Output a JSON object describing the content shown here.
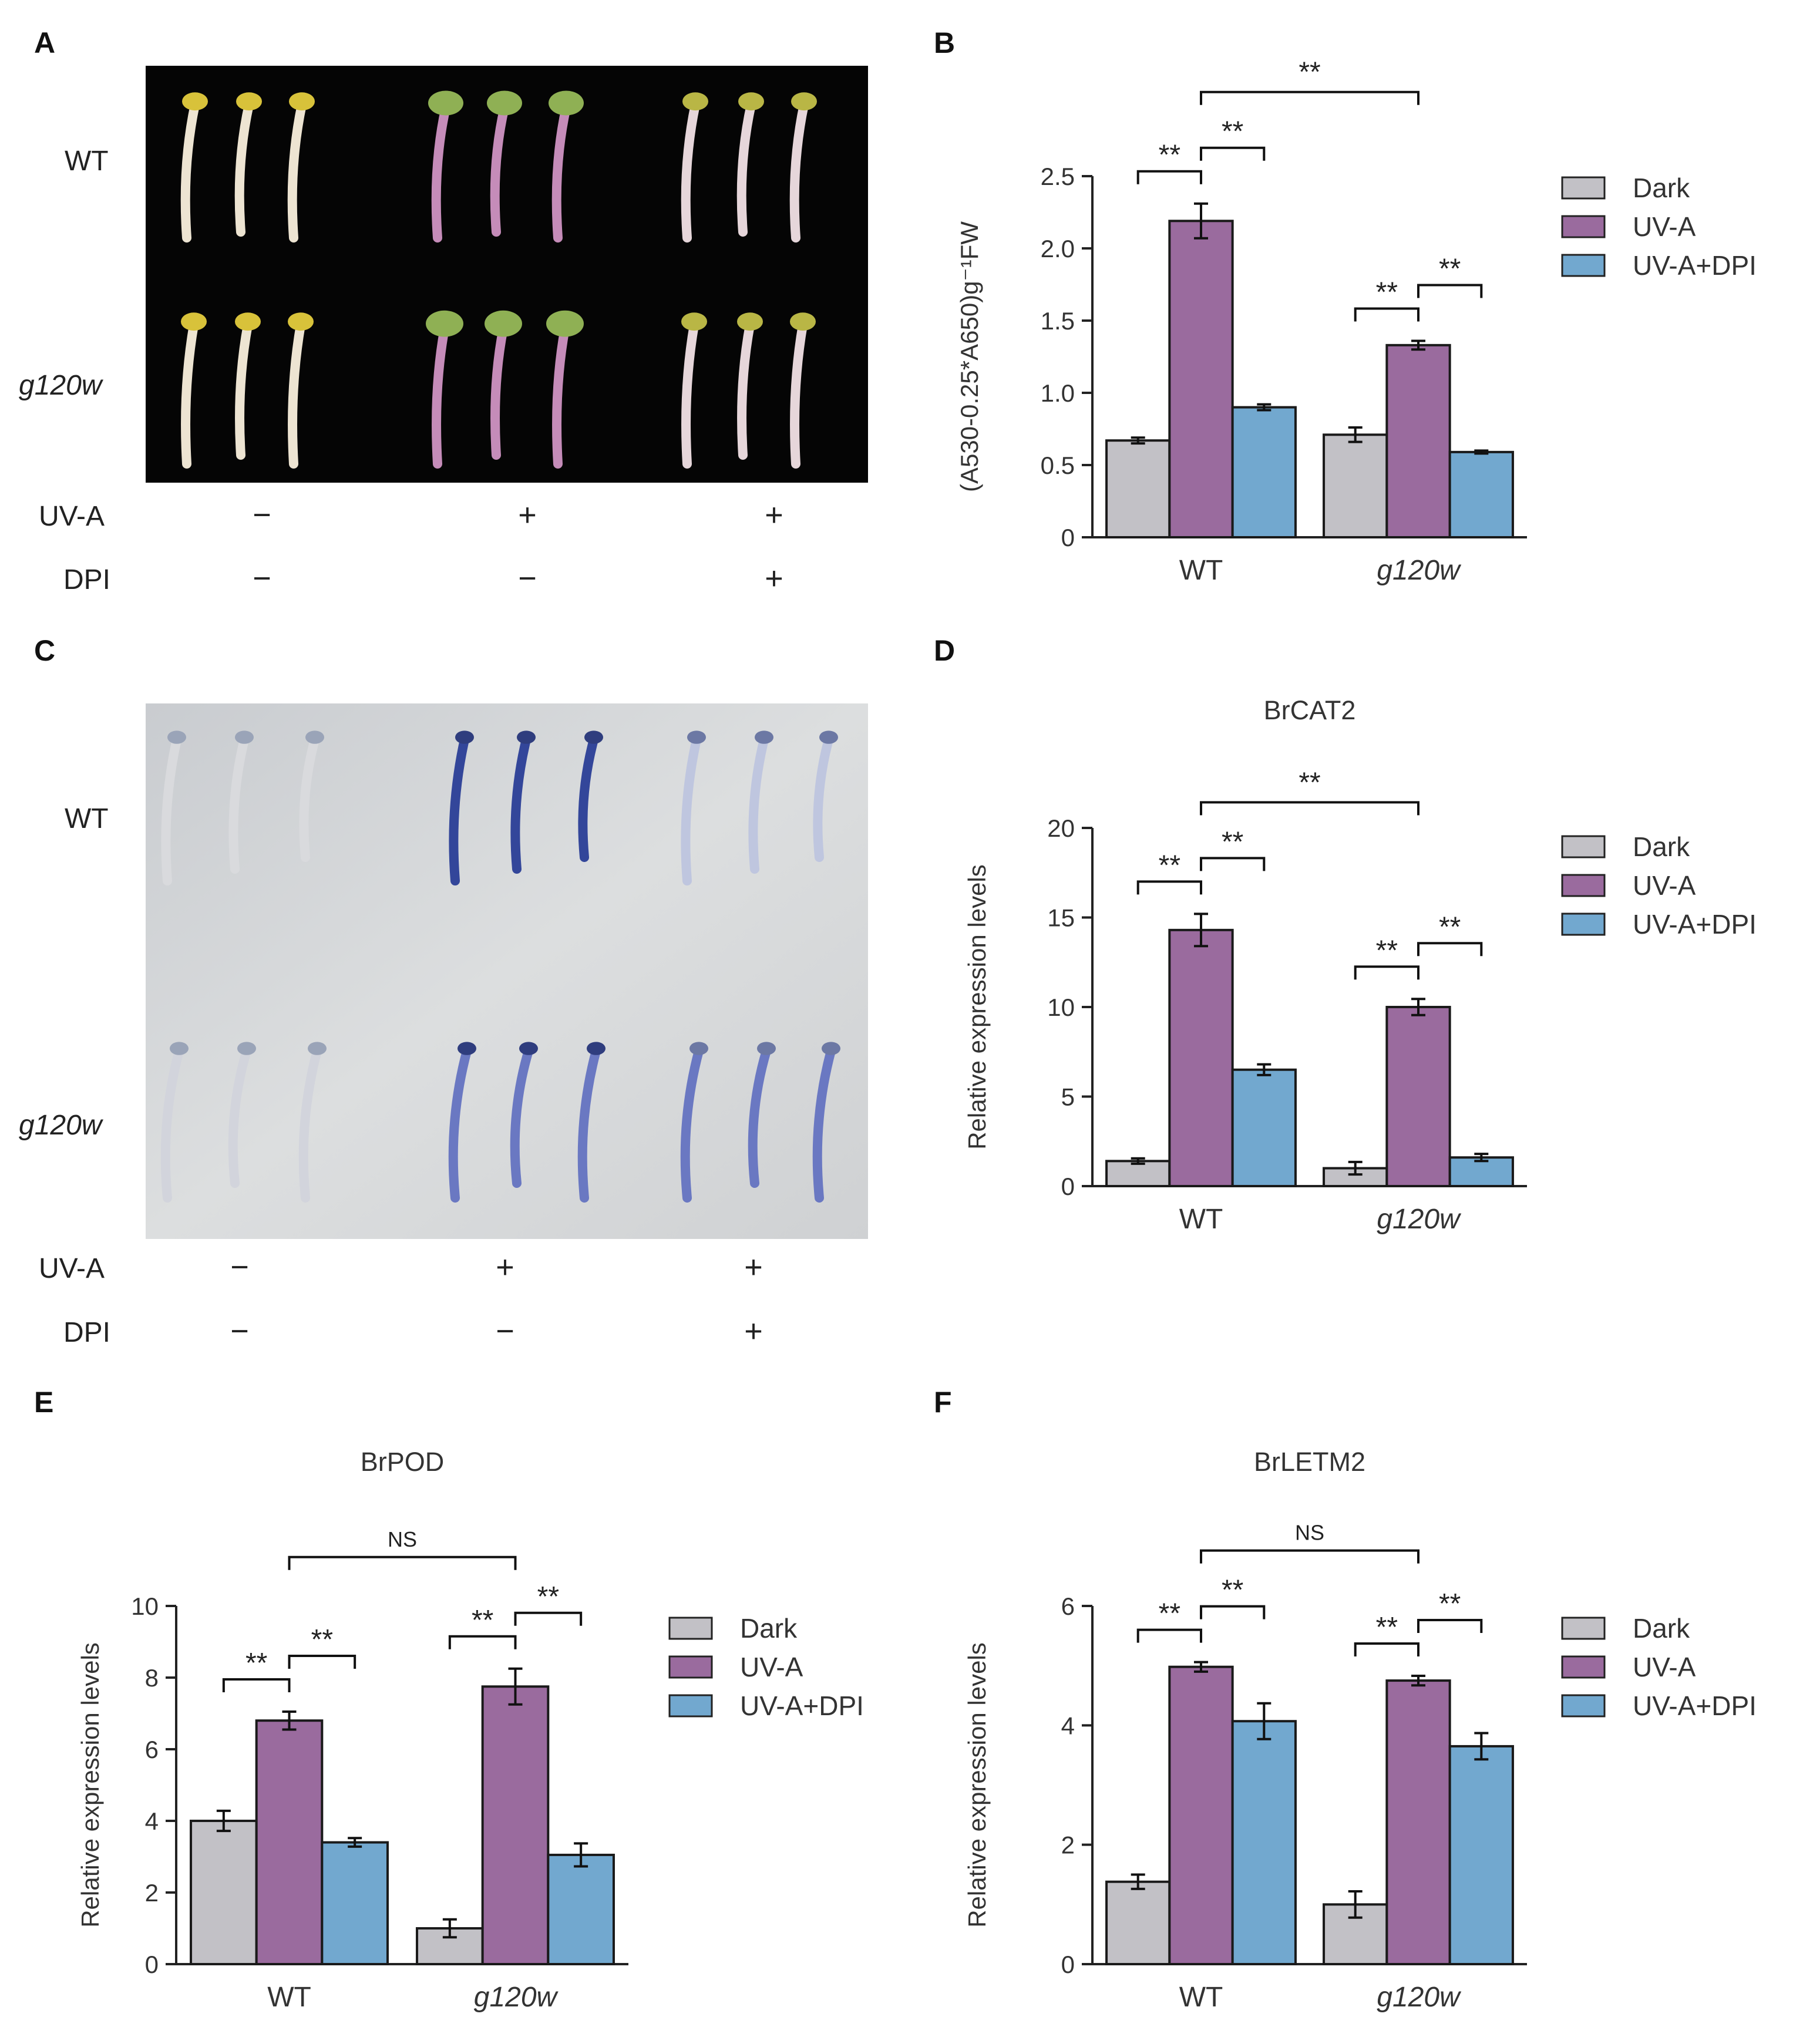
{
  "panel_labels": [
    "A",
    "B",
    "C",
    "D",
    "E",
    "F"
  ],
  "photo_panels": [
    {
      "id": "A",
      "row_labels": [
        "WT",
        "g120w"
      ],
      "treatments": [
        {
          "label": "UV-A",
          "marks": [
            "−",
            "+",
            "+"
          ]
        },
        {
          "label": "DPI",
          "marks": [
            "−",
            "−",
            "+"
          ]
        }
      ],
      "background": "#050505"
    },
    {
      "id": "C",
      "row_labels": [
        "WT",
        "g120w"
      ],
      "treatments": [
        {
          "label": "UV-A",
          "marks": [
            "−",
            "+",
            "+"
          ]
        },
        {
          "label": "DPI",
          "marks": [
            "−",
            "−",
            "+"
          ]
        }
      ],
      "background": "#d3d5d7"
    }
  ],
  "legend": {
    "items": [
      {
        "name": "Dark",
        "color": "#c2c1c6"
      },
      {
        "name": "UV-A",
        "color": "#9a6b9e"
      },
      {
        "name": "UV-A+DPI",
        "color": "#72a8cf"
      }
    ]
  },
  "chart_data": [
    {
      "panel": "B",
      "type": "bar",
      "title": "",
      "ylabel": "(A530-0.25*A650)g⁻¹FW",
      "categories": [
        "WT",
        "g120w"
      ],
      "category_italic": [
        false,
        true
      ],
      "ylim": [
        0,
        2.5
      ],
      "yticks": [
        "0",
        "0.5",
        "1.0",
        "1.5",
        "2.0",
        "2.5"
      ],
      "series": [
        {
          "name": "Dark",
          "values": [
            0.67,
            0.71
          ],
          "errors": [
            0.02,
            0.05
          ]
        },
        {
          "name": "UV-A",
          "values": [
            2.19,
            1.33
          ],
          "errors": [
            0.12,
            0.03
          ]
        },
        {
          "name": "UV-A+DPI",
          "values": [
            0.9,
            0.59
          ],
          "errors": [
            0.02,
            0.01
          ]
        }
      ],
      "significance": [
        {
          "group": 0,
          "from": 0,
          "to": 1,
          "label": "**"
        },
        {
          "group": 0,
          "from": 1,
          "to": 2,
          "label": "**"
        },
        {
          "group": 1,
          "from": 0,
          "to": 1,
          "label": "**"
        },
        {
          "group": 1,
          "from": 1,
          "to": 2,
          "label": "**"
        },
        {
          "cross": true,
          "label": "**"
        }
      ]
    },
    {
      "panel": "D",
      "type": "bar",
      "title": "BrCAT2",
      "ylabel": "Relative expression levels",
      "categories": [
        "WT",
        "g120w"
      ],
      "category_italic": [
        false,
        true
      ],
      "ylim": [
        0,
        20
      ],
      "yticks": [
        "0",
        "5",
        "10",
        "15",
        "20"
      ],
      "series": [
        {
          "name": "Dark",
          "values": [
            1.4,
            1.0
          ],
          "errors": [
            0.15,
            0.35
          ]
        },
        {
          "name": "UV-A",
          "values": [
            14.3,
            10.0
          ],
          "errors": [
            0.9,
            0.45
          ]
        },
        {
          "name": "UV-A+DPI",
          "values": [
            6.5,
            1.6
          ],
          "errors": [
            0.3,
            0.2
          ]
        }
      ],
      "significance": [
        {
          "group": 0,
          "from": 0,
          "to": 1,
          "label": "**"
        },
        {
          "group": 0,
          "from": 1,
          "to": 2,
          "label": "**"
        },
        {
          "group": 1,
          "from": 0,
          "to": 1,
          "label": "**"
        },
        {
          "group": 1,
          "from": 1,
          "to": 2,
          "label": "**"
        },
        {
          "cross": true,
          "label": "**"
        }
      ]
    },
    {
      "panel": "E",
      "type": "bar",
      "title": "BrPOD",
      "ylabel": "Relative expression levels",
      "categories": [
        "WT",
        "g120w"
      ],
      "category_italic": [
        false,
        true
      ],
      "ylim": [
        0,
        10
      ],
      "yticks": [
        "0",
        "2",
        "4",
        "6",
        "8",
        "10"
      ],
      "series": [
        {
          "name": "Dark",
          "values": [
            4.0,
            1.0
          ],
          "errors": [
            0.28,
            0.25
          ]
        },
        {
          "name": "UV-A",
          "values": [
            6.8,
            7.75
          ],
          "errors": [
            0.25,
            0.5
          ]
        },
        {
          "name": "UV-A+DPI",
          "values": [
            3.4,
            3.05
          ],
          "errors": [
            0.12,
            0.32
          ]
        }
      ],
      "significance": [
        {
          "group": 0,
          "from": 0,
          "to": 1,
          "label": "**"
        },
        {
          "group": 0,
          "from": 1,
          "to": 2,
          "label": "**"
        },
        {
          "group": 1,
          "from": 0,
          "to": 1,
          "label": "**"
        },
        {
          "group": 1,
          "from": 1,
          "to": 2,
          "label": "**"
        },
        {
          "cross": true,
          "label": "NS"
        }
      ]
    },
    {
      "panel": "F",
      "type": "bar",
      "title": "BrLETM2",
      "ylabel": "Relative expression levels",
      "categories": [
        "WT",
        "g120w"
      ],
      "category_italic": [
        false,
        true
      ],
      "ylim": [
        0,
        6
      ],
      "yticks": [
        "0",
        "2",
        "4",
        "6"
      ],
      "series": [
        {
          "name": "Dark",
          "values": [
            1.38,
            1.0
          ],
          "errors": [
            0.12,
            0.22
          ]
        },
        {
          "name": "UV-A",
          "values": [
            4.98,
            4.75
          ],
          "errors": [
            0.08,
            0.08
          ]
        },
        {
          "name": "UV-A+DPI",
          "values": [
            4.07,
            3.65
          ],
          "errors": [
            0.3,
            0.22
          ]
        }
      ],
      "significance": [
        {
          "group": 0,
          "from": 0,
          "to": 1,
          "label": "**"
        },
        {
          "group": 0,
          "from": 1,
          "to": 2,
          "label": "**"
        },
        {
          "group": 1,
          "from": 0,
          "to": 1,
          "label": "**"
        },
        {
          "group": 1,
          "from": 1,
          "to": 2,
          "label": "**"
        },
        {
          "cross": true,
          "label": "NS"
        }
      ]
    }
  ]
}
